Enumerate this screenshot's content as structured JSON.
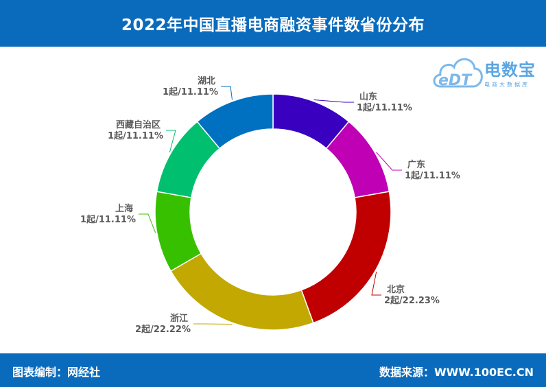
{
  "header": {
    "title": "2022年中国直播电商融资事件数省份分布"
  },
  "footer": {
    "left": "图表编制：网经社",
    "right": "数据来源：WWW.100EC.CN"
  },
  "logo": {
    "mark": "eDT",
    "name": "电数宝",
    "subtitle": "电商大数据库",
    "color": "#5aa5e3"
  },
  "chart_data": {
    "type": "pie",
    "variant": "donut",
    "title": "2022年中国直播电商融资事件数省份分布",
    "slices": [
      {
        "name": "山东",
        "value": 1,
        "label": "1起/11.11%",
        "color": "#3a00c0"
      },
      {
        "name": "广东",
        "value": 1,
        "label": "1起/11.11%",
        "color": "#c000b4"
      },
      {
        "name": "北京",
        "value": 2,
        "label": "2起/22.23%",
        "color": "#c00000"
      },
      {
        "name": "浙江",
        "value": 2,
        "label": "2起/22.22%",
        "color": "#c2a800"
      },
      {
        "name": "上海",
        "value": 1,
        "label": "1起/11.11%",
        "color": "#37c000"
      },
      {
        "name": "西藏自治区",
        "value": 1,
        "label": "1起/11.11%",
        "color": "#00c070"
      },
      {
        "name": "湖北",
        "value": 1,
        "label": "1起/11.11%",
        "color": "#0070c0"
      }
    ]
  }
}
